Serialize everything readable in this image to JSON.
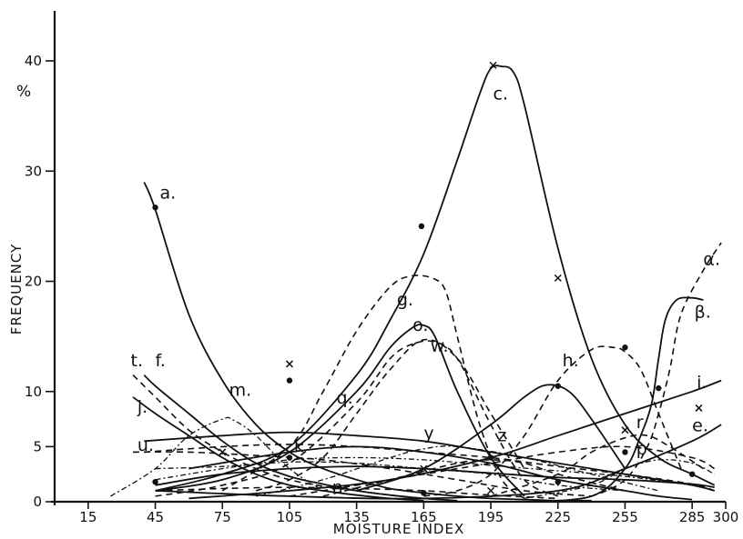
{
  "chart_data": {
    "type": "line",
    "xlabel": "MOISTURE INDEX",
    "ylabel": "FREQUENCY",
    "y_unit": "%",
    "xlim": [
      0,
      300
    ],
    "ylim": [
      0,
      45
    ],
    "xticks": [
      15,
      45,
      75,
      105,
      135,
      165,
      195,
      225,
      255,
      285,
      300
    ],
    "yticks": [
      0,
      5,
      10,
      20,
      30,
      40
    ],
    "grid": false,
    "legend": "none",
    "series": [
      {
        "name": "a.",
        "style": "solid",
        "x": [
          40,
          45,
          60,
          75,
          90,
          105,
          120,
          135,
          150,
          165,
          180,
          195,
          210,
          225,
          240
        ],
        "y": [
          29,
          26.5,
          17,
          11,
          7,
          4.5,
          3,
          2,
          1.2,
          0.8,
          0.5,
          0.3,
          0.2,
          0.1,
          0.1
        ]
      },
      {
        "name": "c.",
        "style": "solid",
        "x": [
          45,
          75,
          105,
          135,
          150,
          165,
          180,
          190,
          195,
          200,
          205,
          210,
          225,
          240,
          255,
          270,
          285,
          295
        ],
        "y": [
          1,
          2.5,
          5,
          11.5,
          16.5,
          22.5,
          31,
          37,
          39.3,
          39.5,
          39,
          36,
          23,
          13,
          7,
          4,
          2.5,
          1.5
        ]
      },
      {
        "name": "g.",
        "style": "dashed",
        "x": [
          75,
          105,
          120,
          135,
          150,
          160,
          170,
          175,
          180,
          190,
          200,
          210
        ],
        "y": [
          1,
          5,
          10,
          15.5,
          19.5,
          20.5,
          20.2,
          19,
          15,
          7,
          2,
          0.3
        ]
      },
      {
        "name": "o.",
        "style": "solid",
        "x": [
          45,
          75,
          105,
          135,
          150,
          160,
          165,
          170,
          180,
          195,
          210
        ],
        "y": [
          1,
          2,
          4.5,
          10,
          14,
          15.8,
          16,
          15,
          10,
          4,
          0.5
        ]
      },
      {
        "name": "w.",
        "style": "dashed",
        "x": [
          45,
          75,
          105,
          135,
          150,
          160,
          170,
          180,
          195,
          210,
          225
        ],
        "y": [
          0.5,
          1.5,
          3.5,
          9,
          13,
          14.3,
          14.5,
          13,
          7,
          2,
          0.5
        ]
      },
      {
        "name": "q.",
        "style": "dashed",
        "x": [
          90,
          105,
          120,
          135,
          150,
          165,
          180,
          195,
          210
        ],
        "y": [
          1,
          2,
          4,
          8,
          12,
          14.7,
          13,
          8,
          3
        ]
      },
      {
        "name": "h.",
        "style": "dashed",
        "x": [
          165,
          180,
          195,
          210,
          225,
          240,
          250,
          255,
          262,
          270,
          280
        ],
        "y": [
          0.5,
          1,
          2.5,
          6,
          11,
          13.8,
          14,
          13.6,
          12,
          8,
          3
        ]
      },
      {
        "name": "α.",
        "style": "dashed",
        "x": [
          225,
          240,
          255,
          265,
          270,
          275,
          280,
          290,
          298
        ],
        "y": [
          0,
          0.5,
          2,
          5,
          8,
          12,
          17,
          21,
          23.5
        ]
      },
      {
        "name": "β.",
        "style": "solid",
        "x": [
          210,
          240,
          255,
          262,
          267,
          270,
          273,
          278,
          285,
          290
        ],
        "y": [
          0,
          0.5,
          3,
          6,
          9,
          13,
          16.5,
          18.3,
          18.5,
          18.3
        ]
      },
      {
        "name": "i.",
        "style": "solid",
        "x": [
          60,
          105,
          150,
          195,
          225,
          255,
          285,
          298
        ],
        "y": [
          0.3,
          1,
          2,
          4,
          6,
          8,
          10,
          11
        ]
      },
      {
        "name": "e.",
        "style": "solid",
        "x": [
          45,
          105,
          165,
          225,
          255,
          285,
          298
        ],
        "y": [
          1,
          0.5,
          0.3,
          1,
          3,
          5.5,
          7
        ]
      },
      {
        "name": "t.",
        "style": "dashed",
        "x": [
          35,
          45,
          60,
          75,
          90,
          105,
          120,
          135,
          150,
          165,
          180
        ],
        "y": [
          11.5,
          9.5,
          6.5,
          4.5,
          3,
          2,
          1.4,
          1,
          0.6,
          0.3,
          0.1
        ]
      },
      {
        "name": "f.",
        "style": "solid",
        "x": [
          40,
          45,
          60,
          75,
          90,
          105,
          120,
          135,
          150,
          165,
          180
        ],
        "y": [
          11.5,
          10.5,
          8,
          5.5,
          3.5,
          2.3,
          1.6,
          1,
          0.6,
          0.3,
          0.1
        ]
      },
      {
        "name": "j.",
        "style": "solid",
        "x": [
          35,
          45,
          60,
          75,
          90,
          105,
          120,
          135,
          150,
          165
        ],
        "y": [
          9.5,
          8,
          6,
          4,
          2.5,
          1.5,
          1,
          0.6,
          0.3,
          0.1
        ]
      },
      {
        "name": "m.",
        "style": "dotdash",
        "x": [
          25,
          45,
          60,
          75,
          80,
          90,
          105,
          120
        ],
        "y": [
          0.5,
          3,
          6,
          7.5,
          7.4,
          6,
          3,
          1
        ]
      },
      {
        "name": "u.",
        "style": "dashed",
        "x": [
          35,
          60,
          90,
          120,
          150,
          180,
          210,
          240
        ],
        "y": [
          4.5,
          4.5,
          4.2,
          3.8,
          3,
          2,
          1,
          0.5
        ]
      },
      {
        "name": "k",
        "style": "dotdash",
        "x": [
          45,
          75,
          105,
          135,
          165,
          195,
          225,
          255
        ],
        "y": [
          3,
          3.2,
          3.6,
          3.5,
          3,
          2.5,
          1.5,
          1
        ]
      },
      {
        "name": "y",
        "style": "dotdash",
        "x": [
          90,
          120,
          150,
          165,
          180,
          210,
          240,
          270
        ],
        "y": [
          0.5,
          2,
          4,
          4.8,
          5,
          4,
          2.5,
          1
        ]
      },
      {
        "name": "z",
        "style": "dashed",
        "x": [
          120,
          150,
          180,
          195,
          210,
          225,
          255
        ],
        "y": [
          0.5,
          2,
          3.5,
          3.8,
          3.5,
          2.5,
          1
        ]
      },
      {
        "name": "n",
        "style": "dashed",
        "x": [
          45,
          75,
          105,
          135,
          165,
          195,
          225
        ],
        "y": [
          1,
          1.2,
          1.3,
          1.2,
          1,
          0.6,
          0.3
        ]
      },
      {
        "name": "r",
        "style": "dashed",
        "x": [
          195,
          225,
          240,
          255,
          265,
          275,
          290
        ],
        "y": [
          0.5,
          2.5,
          4.5,
          5.8,
          6,
          5,
          3
        ]
      },
      {
        "name": "p",
        "style": "dotdash",
        "x": [
          210,
          240,
          255,
          270,
          285,
          295
        ],
        "y": [
          0.3,
          1.5,
          3,
          3.8,
          3.5,
          2.5
        ]
      },
      {
        "name": "",
        "style": "solid",
        "x": [
          135,
          165,
          195,
          210,
          220,
          230,
          240,
          255
        ],
        "y": [
          1,
          3,
          7,
          9.5,
          10.6,
          10,
          7.5,
          3
        ]
      },
      {
        "name": "",
        "style": "solid",
        "x": [
          40,
          75,
          105,
          135,
          165,
          195,
          225,
          255,
          285,
          295
        ],
        "y": [
          5.5,
          6,
          6.3,
          6,
          5.5,
          4.5,
          3.5,
          2.5,
          1.5,
          1
        ]
      },
      {
        "name": "",
        "style": "dashed",
        "x": [
          40,
          75,
          105,
          135,
          165,
          195,
          225,
          255,
          285,
          295
        ],
        "y": [
          4.5,
          5,
          5.2,
          5,
          4.5,
          4,
          3.2,
          2.5,
          1.6,
          1
        ]
      },
      {
        "name": "",
        "style": "dotdash",
        "x": [
          45,
          75,
          105,
          135,
          165,
          195,
          225,
          255,
          285
        ],
        "y": [
          2,
          3,
          3.8,
          4,
          3.8,
          3.3,
          2.8,
          2.3,
          1.5
        ]
      },
      {
        "name": "",
        "style": "solid",
        "x": [
          45,
          75,
          105,
          135,
          165,
          195,
          225,
          255,
          285,
          295
        ],
        "y": [
          1.5,
          2.5,
          3,
          3.2,
          3,
          2.6,
          2.2,
          2,
          1.6,
          1.3
        ]
      },
      {
        "name": "",
        "style": "solid",
        "x": [
          60,
          105,
          135,
          165,
          195,
          225,
          255,
          270,
          285
        ],
        "y": [
          3,
          4.5,
          5,
          4.5,
          3.5,
          2,
          1,
          0.5,
          0.2
        ]
      },
      {
        "name": "",
        "style": "dashed",
        "x": [
          105,
          135,
          165,
          195,
          225,
          255,
          285,
          295
        ],
        "y": [
          0.5,
          1.5,
          2.5,
          3.5,
          4.5,
          5,
          4,
          3
        ]
      }
    ],
    "markers": [
      {
        "kind": "dot",
        "x": 45,
        "y": 26.7
      },
      {
        "kind": "dot",
        "x": 164,
        "y": 25
      },
      {
        "kind": "x",
        "x": 196,
        "y": 39.6
      },
      {
        "kind": "x",
        "x": 225,
        "y": 20.3
      },
      {
        "kind": "x",
        "x": 105,
        "y": 12.5
      },
      {
        "kind": "dot",
        "x": 105,
        "y": 11
      },
      {
        "kind": "dot",
        "x": 225,
        "y": 10.5
      },
      {
        "kind": "dot",
        "x": 255,
        "y": 14
      },
      {
        "kind": "dot",
        "x": 270,
        "y": 10.3
      },
      {
        "kind": "x",
        "x": 288,
        "y": 8.5
      },
      {
        "kind": "dot",
        "x": 45,
        "y": 1.8
      },
      {
        "kind": "dot",
        "x": 105,
        "y": 4
      },
      {
        "kind": "dot",
        "x": 165,
        "y": 0.8
      },
      {
        "kind": "dot",
        "x": 195,
        "y": 4
      },
      {
        "kind": "dot",
        "x": 225,
        "y": 1.8
      },
      {
        "kind": "dot",
        "x": 255,
        "y": 4.5
      },
      {
        "kind": "dot",
        "x": 285,
        "y": 2.5
      },
      {
        "kind": "x",
        "x": 165,
        "y": 3
      },
      {
        "kind": "x",
        "x": 255,
        "y": 6.5
      },
      {
        "kind": "x",
        "x": 75,
        "y": 4.5
      },
      {
        "kind": "x",
        "x": 195,
        "y": 1
      }
    ],
    "curve_labels": [
      {
        "text": "a.",
        "x": 47,
        "y": 27.5
      },
      {
        "text": "c.",
        "x": 196,
        "y": 36.5
      },
      {
        "text": "g.",
        "x": 153,
        "y": 17.8
      },
      {
        "text": "o.",
        "x": 160,
        "y": 15.5
      },
      {
        "text": "w.",
        "x": 168,
        "y": 13.6
      },
      {
        "text": "q.",
        "x": 126,
        "y": 8.9
      },
      {
        "text": "h.",
        "x": 227,
        "y": 12.3
      },
      {
        "text": "α.",
        "x": 290,
        "y": 21.5
      },
      {
        "text": "β.",
        "x": 286,
        "y": 16.7
      },
      {
        "text": "i.",
        "x": 287,
        "y": 10.3
      },
      {
        "text": "e.",
        "x": 285,
        "y": 6.4
      },
      {
        "text": "t.",
        "x": 34,
        "y": 12.3
      },
      {
        "text": "f.",
        "x": 45,
        "y": 12.3
      },
      {
        "text": "j.",
        "x": 37,
        "y": 8.1
      },
      {
        "text": "m.",
        "x": 78,
        "y": 9.6
      },
      {
        "text": "u.",
        "x": 37,
        "y": 4.6
      },
      {
        "text": "k",
        "x": 107,
        "y": 4.5
      },
      {
        "text": "y",
        "x": 165,
        "y": 5.7
      },
      {
        "text": "z",
        "x": 198,
        "y": 5.5
      },
      {
        "text": "n",
        "x": 124,
        "y": 0.8
      },
      {
        "text": "r",
        "x": 260,
        "y": 6.7
      },
      {
        "text": "p",
        "x": 260,
        "y": 4.3
      }
    ]
  }
}
